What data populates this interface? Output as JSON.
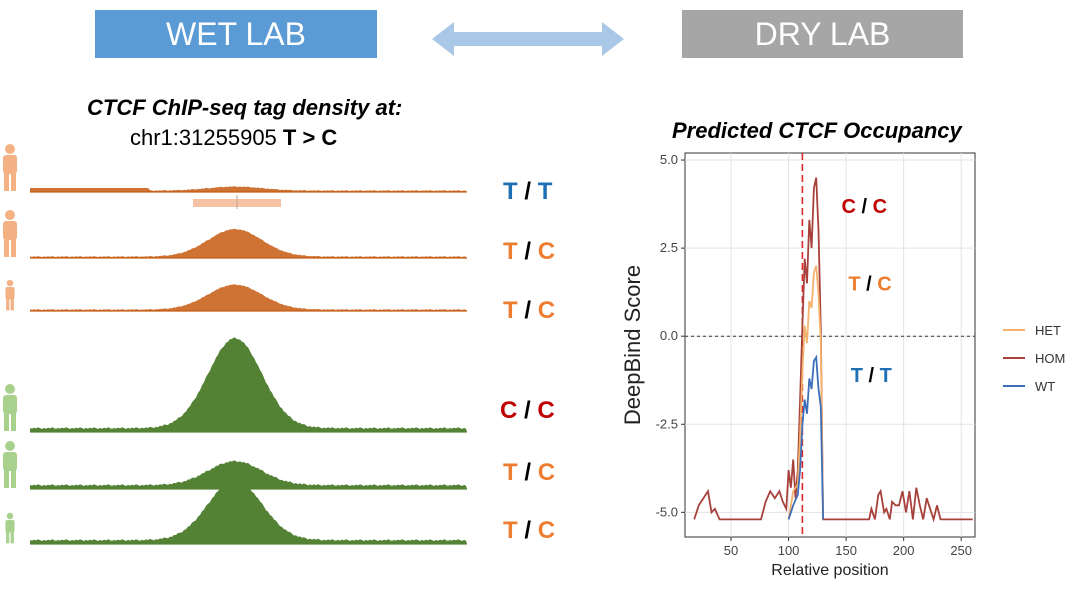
{
  "header": {
    "wet_label": "WET LAB",
    "dry_label": "DRY LAB",
    "colors": {
      "wet": "#5b9bd5",
      "dry": "#a6a6a6",
      "arrow": "#a9c8e8"
    }
  },
  "wet_lab": {
    "title": "CTCF ChIP-seq tag density at:",
    "subtitle_locus": "chr1:31255905 ",
    "subtitle_variant": "T > C",
    "colors": {
      "family1": "#c55a11",
      "family2": "#548235",
      "figure1": "#f4b183",
      "figure2": "#a9d18e"
    },
    "tracks": [
      {
        "allele1": "T",
        "sep": "/",
        "allele2": "T",
        "family": 1,
        "peak": 0.08,
        "figure": "adult"
      },
      {
        "allele1": "T",
        "sep": "/",
        "allele2": "C",
        "family": 1,
        "peak": 0.55,
        "figure": "adult"
      },
      {
        "allele1": "T",
        "sep": "/",
        "allele2": "C",
        "family": 1,
        "peak": 0.5,
        "figure": "child"
      },
      {
        "allele1": "C",
        "sep": "/",
        "allele2": "C",
        "family": 2,
        "peak": 1.0,
        "figure": "adult"
      },
      {
        "allele1": "T",
        "sep": "/",
        "allele2": "C",
        "family": 2,
        "peak": 0.3,
        "figure": "adult"
      },
      {
        "allele1": "T",
        "sep": "/",
        "allele2": "C",
        "family": 2,
        "peak": 0.75,
        "figure": "child"
      }
    ],
    "allele_colors": {
      "T_hom": "#1f6fb5",
      "T": "#ed7d31",
      "C_het": "#ed7d31",
      "C_hom": "#c00000"
    }
  },
  "chart_data": {
    "type": "line",
    "title": "Predicted CTCF Occupancy",
    "xlabel": "Relative position",
    "ylabel": "DeepBind Score",
    "xlim": [
      10,
      262
    ],
    "ylim": [
      -5.7,
      5.2
    ],
    "xticks": [
      50,
      100,
      150,
      200,
      250
    ],
    "yticks": [
      -5.0,
      -2.5,
      0.0,
      2.5,
      5.0
    ],
    "ytick_labels": [
      "-5.0",
      "-2.5",
      "0.0",
      "2.5",
      "5.0"
    ],
    "grid": true,
    "hline": 0.0,
    "vline": 112,
    "legend_position": "right",
    "series": [
      {
        "name": "HOM",
        "color": "#a8413b",
        "x": [
          18,
          22,
          26,
          30,
          33,
          36,
          40,
          44,
          48,
          52,
          56,
          60,
          64,
          68,
          72,
          76,
          80,
          84,
          88,
          92,
          95,
          98,
          100,
          102,
          104,
          106,
          108,
          110,
          112,
          114,
          116,
          118,
          120,
          122,
          124,
          126,
          128,
          130,
          135,
          140,
          145,
          150,
          155,
          160,
          165,
          170,
          172,
          175,
          178,
          180,
          183,
          185,
          188,
          190,
          193,
          196,
          199,
          202,
          205,
          208,
          211,
          214,
          217,
          220,
          223,
          226,
          229,
          232,
          235,
          240,
          245,
          250,
          255,
          260
        ],
        "y": [
          -5.2,
          -4.8,
          -4.6,
          -4.4,
          -5.0,
          -4.9,
          -5.2,
          -5.2,
          -5.2,
          -5.2,
          -5.2,
          -5.2,
          -5.2,
          -5.2,
          -5.2,
          -5.2,
          -4.7,
          -4.4,
          -4.6,
          -4.4,
          -4.7,
          -4.9,
          -3.8,
          -4.3,
          -3.5,
          -4.6,
          -3.8,
          -1.8,
          0.3,
          2.2,
          1.5,
          3.3,
          2.5,
          4.2,
          4.5,
          3.0,
          0.2,
          -5.2,
          -5.2,
          -5.2,
          -5.2,
          -5.2,
          -5.2,
          -5.2,
          -5.2,
          -5.2,
          -4.9,
          -5.2,
          -4.5,
          -4.4,
          -5.0,
          -4.9,
          -5.2,
          -4.7,
          -4.8,
          -4.8,
          -4.4,
          -5.0,
          -4.4,
          -5.2,
          -4.3,
          -4.8,
          -5.2,
          -4.6,
          -4.9,
          -5.2,
          -4.8,
          -5.2,
          -5.2,
          -5.2,
          -5.2,
          -5.2,
          -5.2,
          -5.2
        ]
      },
      {
        "name": "HET",
        "color": "#f4b26b",
        "x": [
          100,
          104,
          108,
          110,
          112,
          114,
          116,
          118,
          120,
          122,
          124,
          126,
          128,
          130
        ],
        "y": [
          -5.2,
          -4.4,
          -4.2,
          -2.8,
          -1.0,
          0.3,
          -0.2,
          1.0,
          0.8,
          1.8,
          2.0,
          1.2,
          -0.2,
          -5.2
        ]
      },
      {
        "name": "WT",
        "color": "#3d6fb8",
        "x": [
          100,
          104,
          108,
          110,
          112,
          114,
          116,
          118,
          120,
          122,
          124,
          126,
          128,
          130
        ],
        "y": [
          -5.2,
          -4.8,
          -4.5,
          -3.8,
          -2.5,
          -1.8,
          -2.2,
          -1.2,
          -1.5,
          -0.7,
          -0.6,
          -1.5,
          -2.0,
          -5.2
        ]
      }
    ],
    "annotations": [
      {
        "allele1": "C",
        "sep": "/",
        "allele2": "C",
        "x": 146,
        "y": 3.5,
        "color": "#c00000"
      },
      {
        "allele1": "T",
        "sep": "/",
        "allele2": "C",
        "x": 152,
        "y": 1.3,
        "color": "#ed7d31"
      },
      {
        "allele1": "T",
        "sep": "/",
        "allele2": "T",
        "x": 154,
        "y": -1.3,
        "color": "#1f6fb5"
      }
    ]
  }
}
